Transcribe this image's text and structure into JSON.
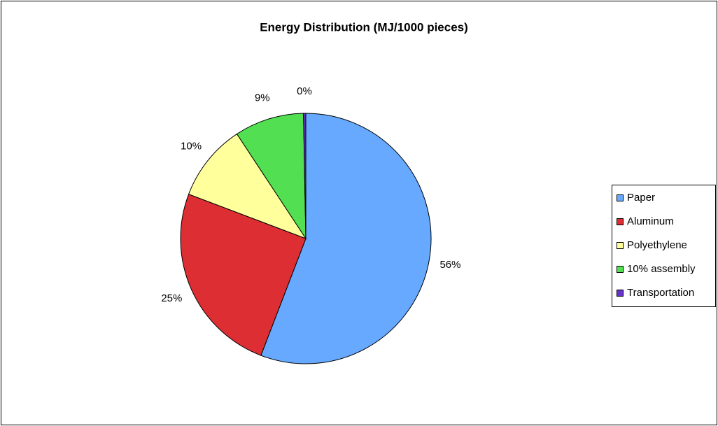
{
  "chart_data": {
    "type": "pie",
    "title": "Energy Distribution (MJ/1000 pieces)",
    "categories": [
      "Paper",
      "Aluminum",
      "Polyethylene",
      "10% assembly",
      "Transportation"
    ],
    "values": [
      56,
      25,
      10,
      9,
      0.3
    ],
    "value_labels": [
      "56%",
      "25%",
      "10%",
      "9%",
      "0%"
    ],
    "colors": [
      "#66a9ff",
      "#dd2e33",
      "#ffff9c",
      "#52e052",
      "#6633cc"
    ],
    "legend": "right"
  }
}
